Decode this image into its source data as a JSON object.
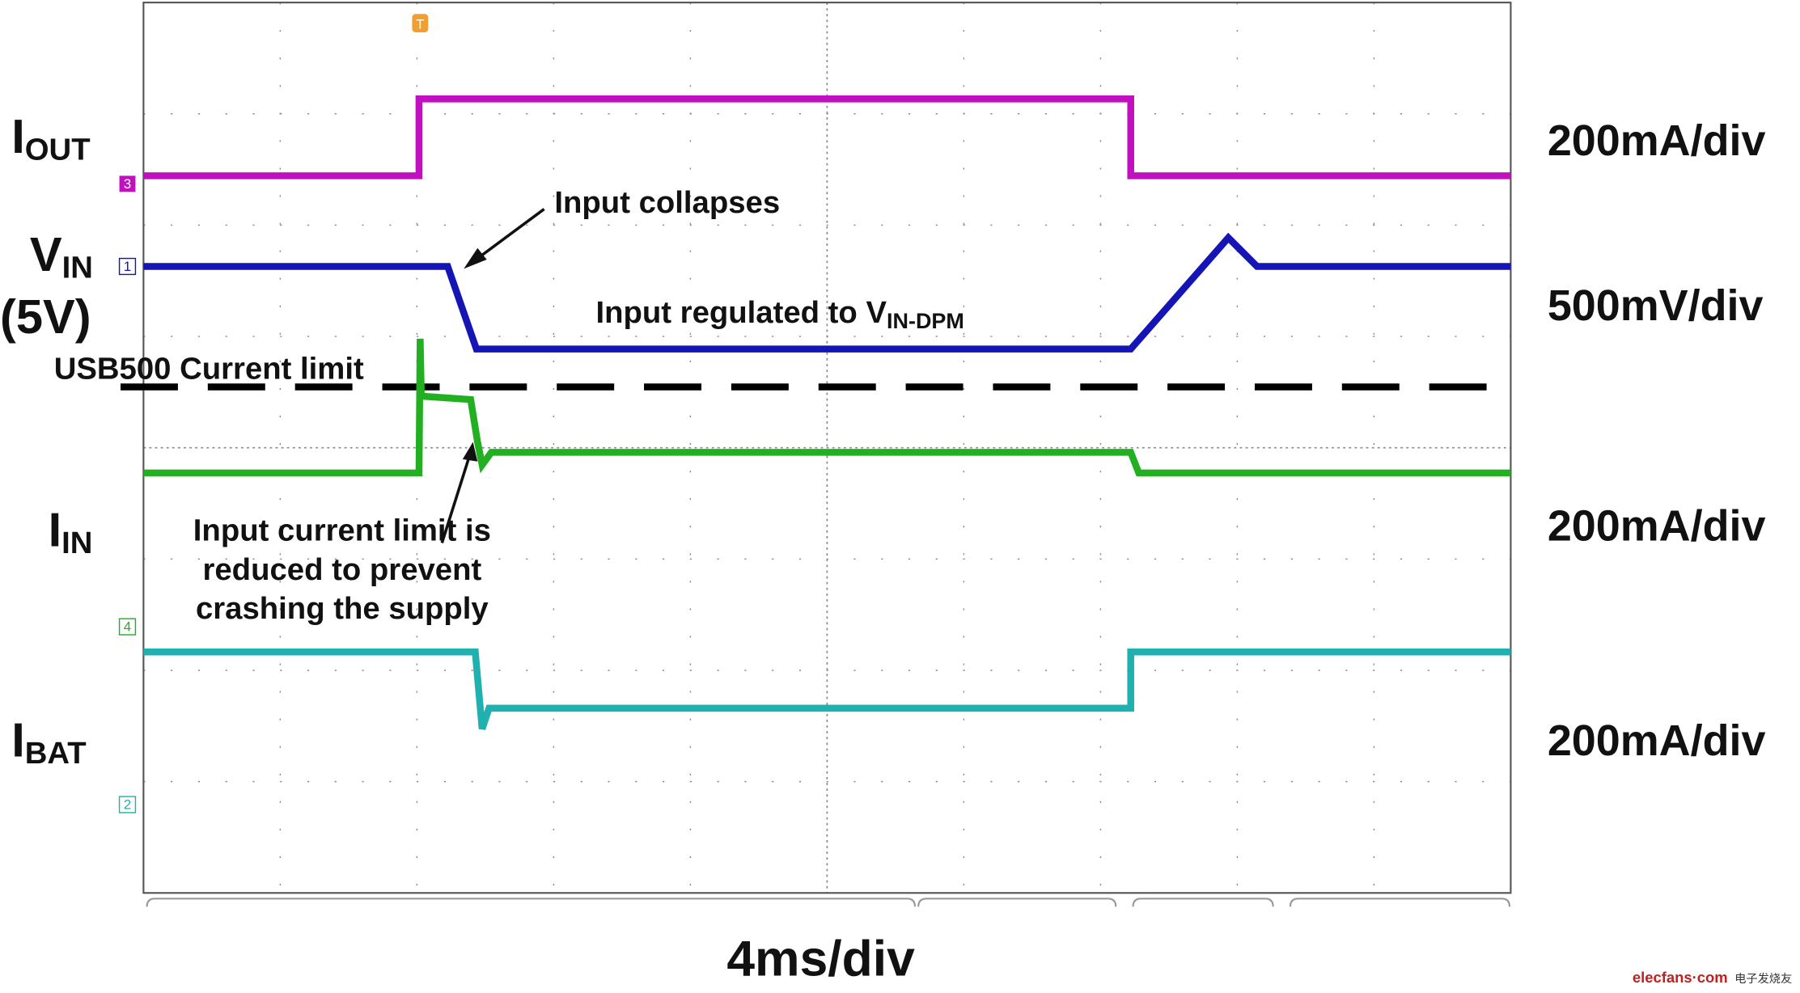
{
  "channels": [
    {
      "name": "I",
      "sub": "OUT",
      "scale": "200mA/div",
      "marker": "3"
    },
    {
      "name": "V",
      "sub": "IN",
      "note": "(5V)",
      "scale": "500mV/div",
      "marker": "1"
    },
    {
      "name": "I",
      "sub": "IN",
      "scale": "200mA/div",
      "marker": "4"
    },
    {
      "name": "I",
      "sub": "BAT",
      "scale": "200mA/div",
      "marker": "2"
    }
  ],
  "trigger": "T",
  "annotations": {
    "collapse": "Input collapses",
    "regulated": {
      "text": "Input regulated to V",
      "sub": "IN-DPM"
    },
    "limit": "USB500 Current limit",
    "reduced": [
      "Input current limit is",
      "reduced to prevent",
      "crashing the supply"
    ]
  },
  "timebase": "4ms/div",
  "watermark": {
    "site": "elecfans·com",
    "brand": "电子发烧友"
  }
}
